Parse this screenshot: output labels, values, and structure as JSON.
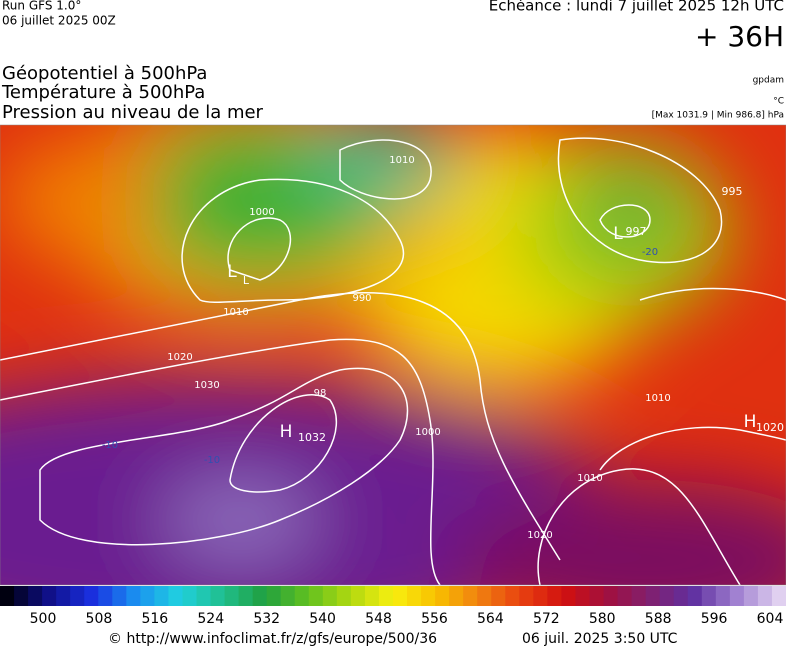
{
  "header": {
    "run": "Run GFS 1.0°",
    "date": "06 juillet 2025 00Z",
    "echeance": "Echéance : lundi 7 juillet 2025 12h UTC",
    "lead": "+ 36H"
  },
  "titles": [
    "Géopotentiel à 500hPa",
    "Température à 500hPa",
    "Pression au niveau de la mer"
  ],
  "units": [
    "gpdam",
    "°C",
    "[Max 1031.9 | Min 986.8] hPa"
  ],
  "map_labels": [
    "H",
    "1032",
    "H",
    "1020",
    "L",
    "995",
    "L",
    "997",
    "L",
    "98",
    "1030",
    "1020",
    "1010",
    "1000",
    "990",
    "1010",
    "1010",
    "1000",
    "1020",
    "1010",
    "-10",
    "-10",
    "-20"
  ],
  "colorbar": {
    "ticks": [
      "500",
      "508",
      "516",
      "524",
      "532",
      "540",
      "548",
      "556",
      "564",
      "572",
      "580",
      "588",
      "596",
      "604"
    ]
  },
  "footer": {
    "url": "© http://www.infoclimat.fr/z/gfs/europe/500/36",
    "time": "06 juil. 2025  3:50 UTC"
  }
}
